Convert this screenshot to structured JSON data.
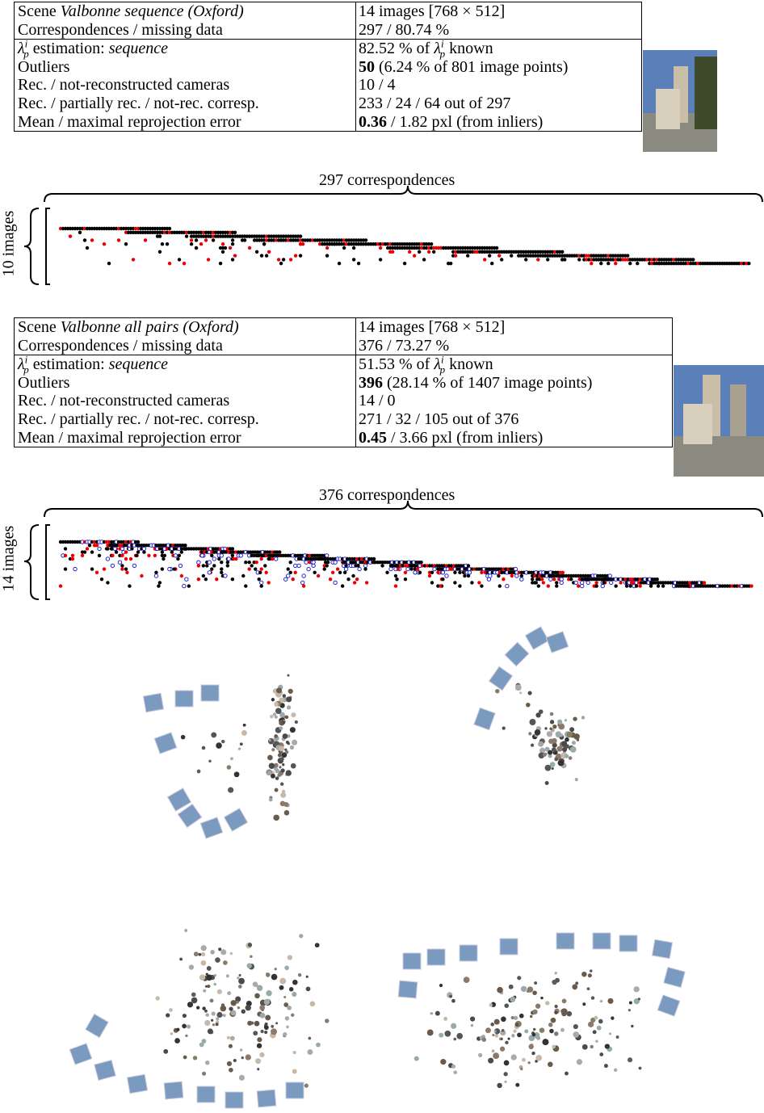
{
  "tables": [
    {
      "rows": [
        [
          [
            {
              "text": "Scene "
            },
            {
              "text": "Valbonne sequence (Oxford)",
              "style": "italic"
            }
          ],
          [
            {
              "text": "14 images [768 × 512]"
            }
          ]
        ],
        [
          [
            {
              "text": "Correspondences / missing data"
            }
          ],
          [
            {
              "text": "297 / 80.74 %"
            }
          ]
        ],
        [
          [
            {
              "text": "λ",
              "sub": "p",
              "sup": "i"
            },
            {
              "text": " estimation: "
            },
            {
              "text": "sequence",
              "style": "italic"
            }
          ],
          [
            {
              "text": "82.52 % of "
            },
            {
              "text": "λ",
              "sub": "p",
              "sup": "i"
            },
            {
              "text": " known"
            }
          ]
        ],
        [
          [
            {
              "text": "Outliers"
            }
          ],
          [
            {
              "text": "50",
              "style": "bold"
            },
            {
              "text": " (6.24 % of 801 image points)"
            }
          ]
        ],
        [
          [
            {
              "text": "Rec. / not-reconstructed cameras"
            }
          ],
          [
            {
              "text": "10 / 4"
            }
          ]
        ],
        [
          [
            {
              "text": "Rec. / partially rec. / not-rec. corresp."
            }
          ],
          [
            {
              "text": "233 / 24 / 64 out of 297"
            }
          ]
        ],
        [
          [
            {
              "text": "Mean / maximal reprojection error"
            }
          ],
          [
            {
              "text": "0.36",
              "style": "bold"
            },
            {
              "text": " / 1.82 pxl (from inliers)"
            }
          ]
        ]
      ],
      "columns_label": "297 correspondences",
      "rows_label": "10 images"
    },
    {
      "rows": [
        [
          [
            {
              "text": "Scene "
            },
            {
              "text": "Valbonne all pairs (Oxford)",
              "style": "italic"
            }
          ],
          [
            {
              "text": "14 images [768 × 512]"
            }
          ]
        ],
        [
          [
            {
              "text": "Correspondences / missing data"
            }
          ],
          [
            {
              "text": "376 / 73.27 %"
            }
          ]
        ],
        [
          [
            {
              "text": "λ",
              "sub": "p",
              "sup": "i"
            },
            {
              "text": " estimation: "
            },
            {
              "text": "sequence",
              "style": "italic"
            }
          ],
          [
            {
              "text": "51.53 % of "
            },
            {
              "text": "λ",
              "sub": "p",
              "sup": "i"
            },
            {
              "text": " known"
            }
          ]
        ],
        [
          [
            {
              "text": "Outliers"
            }
          ],
          [
            {
              "text": "396",
              "style": "bold"
            },
            {
              "text": " (28.14 % of 1407 image points)"
            }
          ]
        ],
        [
          [
            {
              "text": "Rec. / not-reconstructed cameras"
            }
          ],
          [
            {
              "text": "14 / 0"
            }
          ]
        ],
        [
          [
            {
              "text": "Rec. / partially rec. / not-rec. corresp."
            }
          ],
          [
            {
              "text": "271 / 32 / 105 out of 376"
            }
          ]
        ],
        [
          [
            {
              "text": "Mean / maximal reprojection error"
            }
          ],
          [
            {
              "text": "0.45",
              "style": "bold"
            },
            {
              "text": " / 3.66 pxl (from inliers)"
            }
          ]
        ]
      ],
      "columns_label": "376 correspondences",
      "rows_label": "14 images"
    }
  ]
}
